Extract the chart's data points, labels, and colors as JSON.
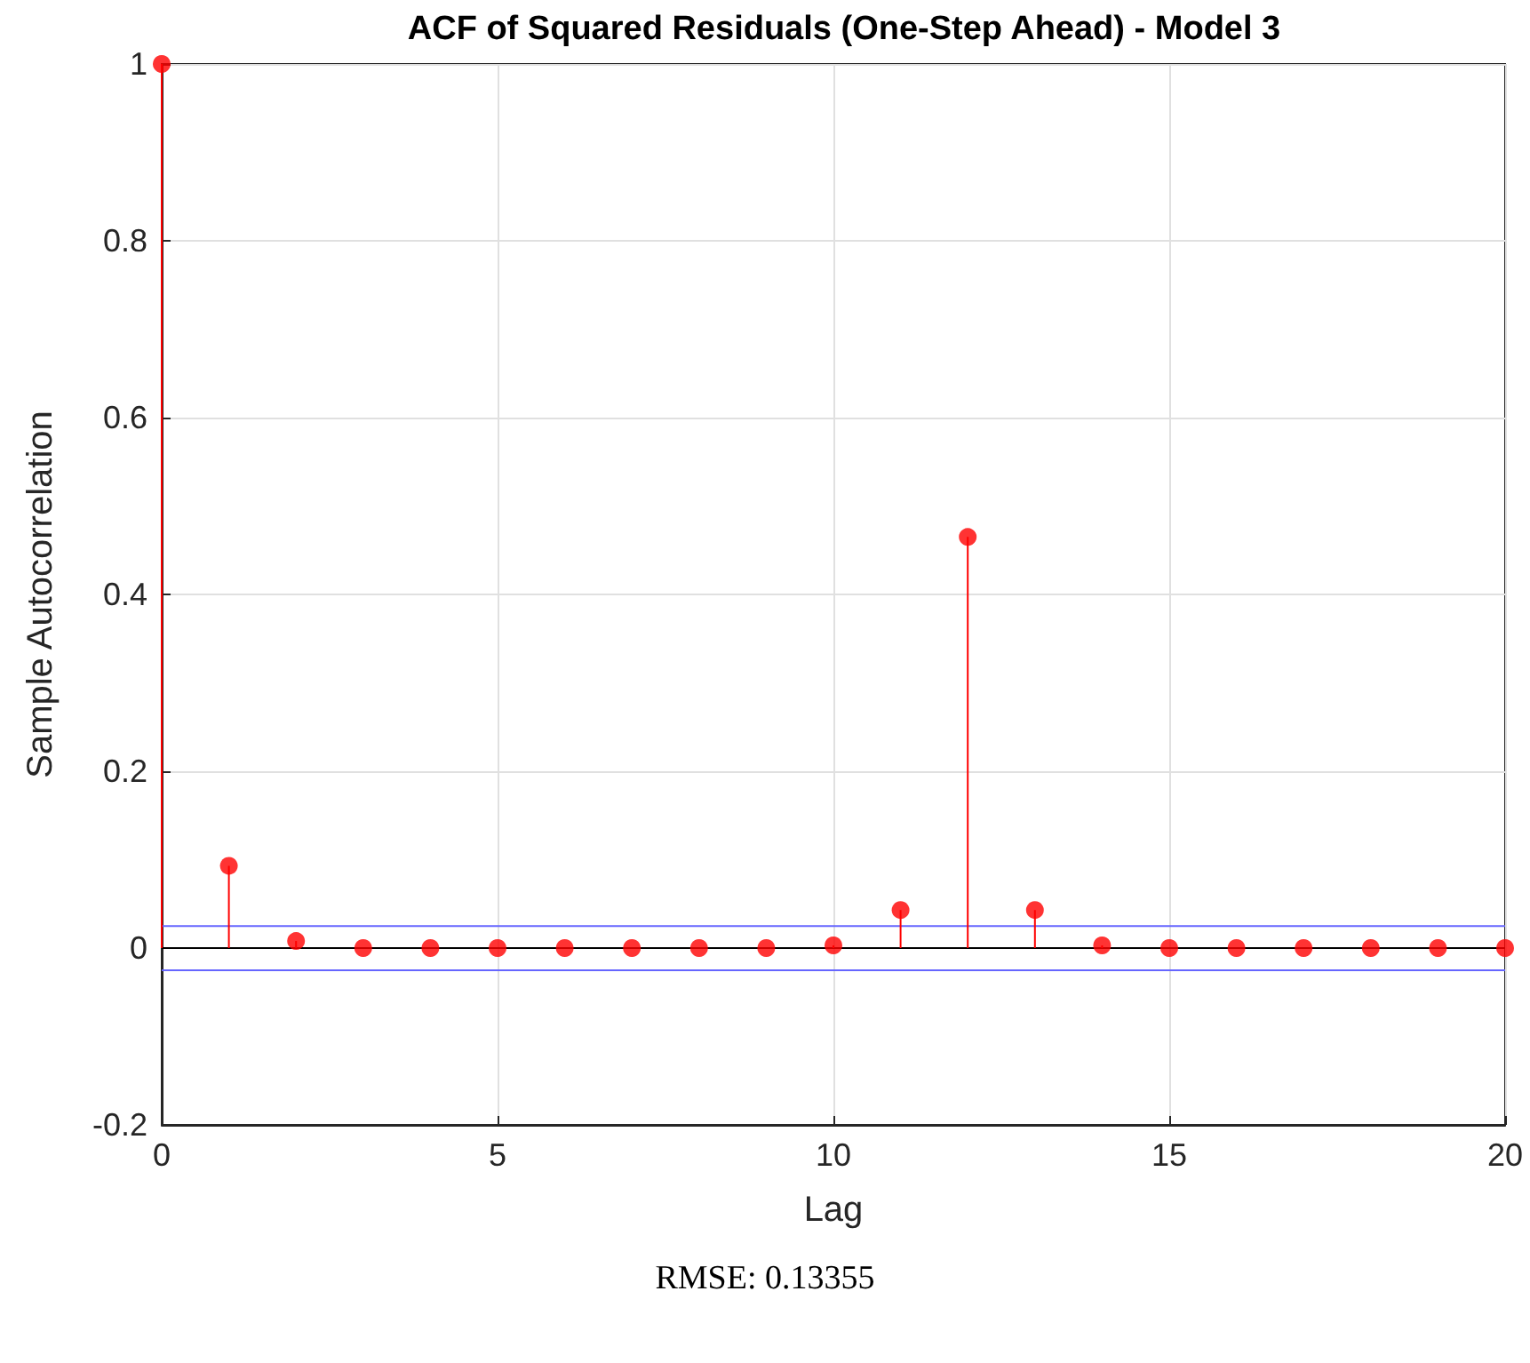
{
  "chart_data": {
    "type": "lollipop",
    "title": "ACF of Squared Residuals (One-Step Ahead) - Model 3",
    "xlabel": "Lag",
    "ylabel": "Sample Autocorrelation",
    "x": [
      0,
      1,
      2,
      3,
      4,
      5,
      6,
      7,
      8,
      9,
      10,
      11,
      12,
      13,
      14,
      15,
      16,
      17,
      18,
      19,
      20
    ],
    "series": [
      {
        "color": "#ff0000",
        "values": [
          1,
          0.093,
          0.008,
          0,
          0,
          0,
          0,
          0,
          0,
          0,
          0.003,
          0.043,
          0.465,
          0.043,
          0.003,
          0,
          0,
          0,
          0,
          0,
          0
        ]
      }
    ],
    "xlim": [
      0,
      20
    ],
    "xticks": [
      0,
      5,
      10,
      15,
      20
    ],
    "ylim": [
      -0.2,
      1
    ],
    "yticks": [
      -0.2,
      0,
      0.2,
      0.4,
      0.6,
      0.8,
      1
    ],
    "ref_lines": [
      {
        "axis": "y",
        "value": 0.025,
        "color": "#6666ff"
      },
      {
        "axis": "y",
        "value": -0.025,
        "color": "#6666ff"
      },
      {
        "axis": "y",
        "value": 0,
        "color": "#000000"
      }
    ],
    "annotations": [
      "RMSE: 0.13355"
    ],
    "grid": true,
    "marker": "circle",
    "line_style": "solid"
  }
}
